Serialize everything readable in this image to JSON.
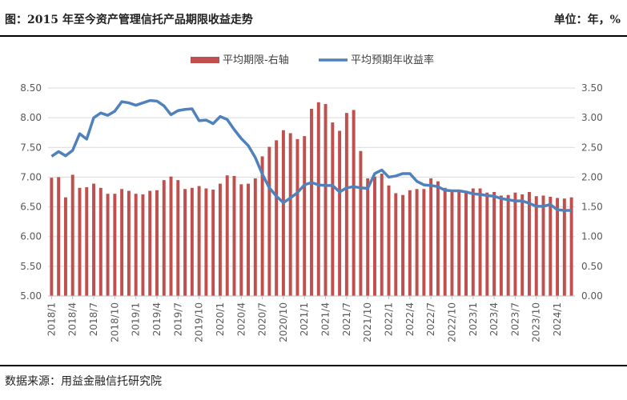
{
  "header": {
    "title": "图：2015 年至今资产管理信托产品期限收益走势",
    "unit": "单位：年，%"
  },
  "footer": {
    "source": "数据来源：用益金融信托研究院"
  },
  "colors": {
    "bar": "#C0504D",
    "line": "#4F81BD",
    "grid": "#D9D9D9"
  },
  "chart_data": {
    "type": "bar+line",
    "legend": [
      "平均期限-右轴",
      "平均预期年收益率"
    ],
    "legend_position": "top",
    "grid": true,
    "x_tick_labels": [
      "2018/1",
      "2018/4",
      "2018/7",
      "2018/10",
      "2019/1",
      "2019/4",
      "2019/7",
      "2019/10",
      "2020/1",
      "2020/4",
      "2020/7",
      "2020/10",
      "2021/1",
      "2021/4",
      "2021/7",
      "2021/10",
      "2022/1",
      "2022/4",
      "2022/7",
      "2022/10",
      "2023/1",
      "2023/4",
      "2023/7",
      "2023/10",
      "2024/1"
    ],
    "left_axis": {
      "ticks": [
        "5.00",
        "5.50",
        "6.00",
        "6.50",
        "7.00",
        "7.50",
        "8.00",
        "8.50"
      ],
      "range": [
        5.0,
        8.5
      ]
    },
    "right_axis": {
      "ticks": [
        "0.00",
        "0.50",
        "1.00",
        "1.50",
        "2.00",
        "2.50",
        "3.00",
        "3.50"
      ],
      "range": [
        0.0,
        3.5
      ]
    },
    "categories": [
      "2018/1",
      "2018/2",
      "2018/3",
      "2018/4",
      "2018/5",
      "2018/6",
      "2018/7",
      "2018/8",
      "2018/9",
      "2018/10",
      "2018/11",
      "2018/12",
      "2019/1",
      "2019/2",
      "2019/3",
      "2019/4",
      "2019/5",
      "2019/6",
      "2019/7",
      "2019/8",
      "2019/9",
      "2019/10",
      "2019/11",
      "2019/12",
      "2020/1",
      "2020/2",
      "2020/3",
      "2020/4",
      "2020/5",
      "2020/6",
      "2020/7",
      "2020/8",
      "2020/9",
      "2020/10",
      "2020/11",
      "2020/12",
      "2021/1",
      "2021/2",
      "2021/3",
      "2021/4",
      "2021/5",
      "2021/6",
      "2021/7",
      "2021/8",
      "2021/9",
      "2021/10",
      "2021/11",
      "2021/12",
      "2022/1",
      "2022/2",
      "2022/3",
      "2022/4",
      "2022/5",
      "2022/6",
      "2022/7",
      "2022/8",
      "2022/9",
      "2022/10",
      "2022/11",
      "2022/12",
      "2023/1",
      "2023/2",
      "2023/3",
      "2023/4",
      "2023/5",
      "2023/6",
      "2023/7",
      "2023/8",
      "2023/9",
      "2023/10",
      "2023/11",
      "2023/12",
      "2024/1",
      "2024/2",
      "2024/3"
    ],
    "series": [
      {
        "name": "平均期限-右轴",
        "type": "bar",
        "axis": "right",
        "values": [
          1.99,
          2.0,
          1.66,
          2.04,
          1.82,
          1.83,
          1.89,
          1.82,
          1.72,
          1.72,
          1.8,
          1.77,
          1.72,
          1.71,
          1.77,
          1.78,
          1.95,
          2.01,
          1.95,
          1.8,
          1.82,
          1.85,
          1.81,
          1.79,
          1.89,
          2.03,
          2.02,
          1.88,
          1.89,
          1.98,
          2.35,
          2.51,
          2.62,
          2.79,
          2.74,
          2.64,
          2.69,
          3.15,
          3.26,
          3.23,
          2.92,
          2.78,
          3.08,
          3.13,
          2.44,
          1.98,
          2.01,
          2.06,
          1.86,
          1.73,
          1.7,
          1.78,
          1.8,
          1.8,
          1.98,
          1.93,
          1.82,
          1.75,
          1.77,
          1.74,
          1.81,
          1.81,
          1.74,
          1.75,
          1.69,
          1.7,
          1.74,
          1.71,
          1.75,
          1.68,
          1.69,
          1.67,
          1.65,
          1.64,
          1.66
        ]
      },
      {
        "name": "平均预期年收益率",
        "type": "line",
        "axis": "left",
        "values": [
          7.35,
          7.43,
          7.36,
          7.45,
          7.73,
          7.64,
          8.0,
          8.08,
          8.04,
          8.11,
          8.27,
          8.25,
          8.21,
          8.25,
          8.29,
          8.28,
          8.2,
          8.05,
          8.12,
          8.14,
          8.15,
          7.95,
          7.96,
          7.9,
          8.02,
          7.97,
          7.8,
          7.65,
          7.53,
          7.33,
          7.05,
          6.82,
          6.68,
          6.57,
          6.65,
          6.74,
          6.87,
          6.91,
          6.87,
          6.86,
          6.86,
          6.75,
          6.82,
          6.84,
          6.82,
          6.81,
          7.06,
          7.12,
          7.0,
          7.02,
          7.06,
          7.06,
          6.93,
          6.87,
          6.86,
          6.84,
          6.78,
          6.77,
          6.77,
          6.75,
          6.72,
          6.71,
          6.69,
          6.68,
          6.64,
          6.62,
          6.6,
          6.6,
          6.56,
          6.51,
          6.51,
          6.54,
          6.45,
          6.44,
          6.44
        ]
      }
    ]
  }
}
